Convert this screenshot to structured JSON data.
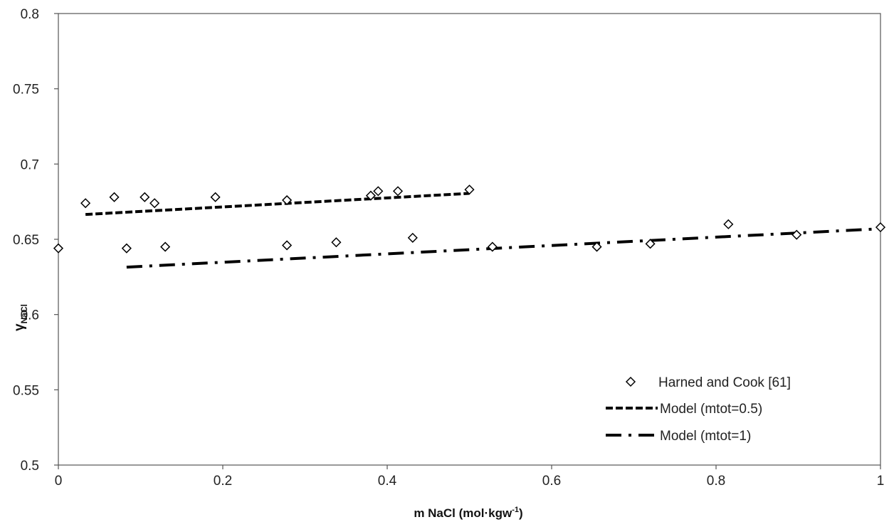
{
  "chart_data": {
    "type": "scatter",
    "title": "",
    "xlabel": {
      "main": "m NaCl (mol·kgw",
      "sup": "-1",
      "close": ")"
    },
    "ylabel": {
      "main": "γ",
      "sub": "NaCl"
    },
    "xlim": [
      0,
      1
    ],
    "ylim": [
      0.5,
      0.8
    ],
    "x_ticks": [
      0,
      0.2,
      0.4,
      0.6,
      0.8,
      1
    ],
    "x_tick_labels": [
      "0",
      "0.2",
      "0.4",
      "0.6",
      "0.8",
      "1"
    ],
    "y_ticks": [
      0.5,
      0.55,
      0.6,
      0.65,
      0.7,
      0.75,
      0.8
    ],
    "y_tick_labels": [
      "0.5",
      "0.55",
      "0.6",
      "0.65",
      "0.7",
      "0.75",
      "0.8"
    ],
    "grid": false,
    "legend_position": "bottom-right",
    "series": [
      {
        "name": "Harned and Cook [61]",
        "style": "markers-diamond",
        "color": "#000000",
        "points": [
          [
            0.0,
            0.644
          ],
          [
            0.033,
            0.674
          ],
          [
            0.068,
            0.678
          ],
          [
            0.083,
            0.644
          ],
          [
            0.105,
            0.678
          ],
          [
            0.117,
            0.674
          ],
          [
            0.13,
            0.645
          ],
          [
            0.191,
            0.678
          ],
          [
            0.278,
            0.676
          ],
          [
            0.278,
            0.646
          ],
          [
            0.338,
            0.648
          ],
          [
            0.38,
            0.679
          ],
          [
            0.389,
            0.682
          ],
          [
            0.413,
            0.682
          ],
          [
            0.431,
            0.651
          ],
          [
            0.5,
            0.683
          ],
          [
            0.528,
            0.645
          ],
          [
            0.655,
            0.645
          ],
          [
            0.72,
            0.647
          ],
          [
            0.815,
            0.66
          ],
          [
            0.898,
            0.653
          ],
          [
            1.0,
            0.658
          ]
        ]
      },
      {
        "name": "Model (mtot=0.5)",
        "style": "dashed",
        "color": "#000000",
        "points": [
          [
            0.033,
            0.6665
          ],
          [
            0.5,
            0.6805
          ]
        ]
      },
      {
        "name": "Model (mtot=1)",
        "style": "dash-dot",
        "color": "#000000",
        "points": [
          [
            0.083,
            0.6315
          ],
          [
            1.0,
            0.657
          ]
        ]
      }
    ]
  }
}
